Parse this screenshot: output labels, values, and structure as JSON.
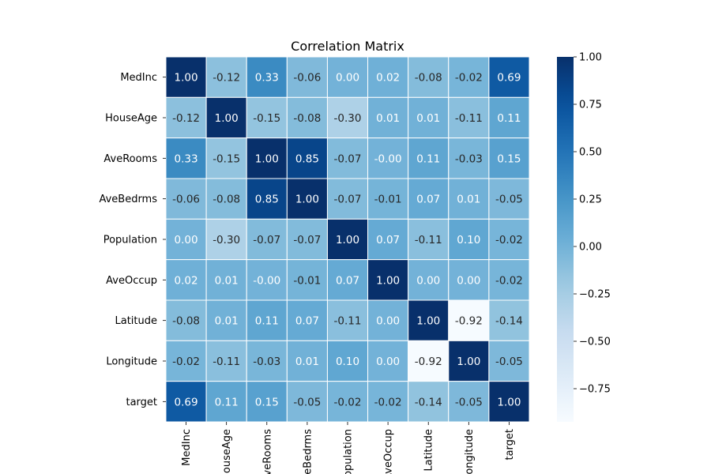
{
  "chart_data": {
    "type": "heatmap",
    "title": "Correlation Matrix",
    "colormap": "Blues",
    "gridlines": "white",
    "legend": "right",
    "row_labels": [
      "MedInc",
      "HouseAge",
      "AveRooms",
      "AveBedrms",
      "Population",
      "AveOccup",
      "Latitude",
      "Longitude",
      "target"
    ],
    "col_labels": [
      "MedInc",
      "HouseAge",
      "AveRooms",
      "AveBedrms",
      "Population",
      "AveOccup",
      "Latitude",
      "Longitude",
      "target"
    ],
    "values": [
      [
        1.0,
        -0.12,
        0.33,
        -0.06,
        0.0,
        0.02,
        -0.08,
        -0.02,
        0.69
      ],
      [
        -0.12,
        1.0,
        -0.15,
        -0.08,
        -0.3,
        0.01,
        0.01,
        -0.11,
        0.11
      ],
      [
        0.33,
        -0.15,
        1.0,
        0.85,
        -0.07,
        -0.0,
        0.11,
        -0.03,
        0.15
      ],
      [
        -0.06,
        -0.08,
        0.85,
        1.0,
        -0.07,
        -0.01,
        0.07,
        0.01,
        -0.05
      ],
      [
        0.0,
        -0.3,
        -0.07,
        -0.07,
        1.0,
        0.07,
        -0.11,
        0.1,
        -0.02
      ],
      [
        0.02,
        0.01,
        -0.0,
        -0.01,
        0.07,
        1.0,
        0.0,
        0.0,
        -0.02
      ],
      [
        -0.08,
        0.01,
        0.11,
        0.07,
        -0.11,
        0.0,
        1.0,
        -0.92,
        -0.14
      ],
      [
        -0.02,
        -0.11,
        -0.03,
        0.01,
        0.1,
        0.0,
        -0.92,
        1.0,
        -0.05
      ],
      [
        0.69,
        0.11,
        0.15,
        -0.05,
        -0.02,
        -0.02,
        -0.14,
        -0.05,
        1.0
      ]
    ],
    "annotations": [
      [
        "1.00",
        "-0.12",
        "0.33",
        "-0.06",
        "0.00",
        "0.02",
        "-0.08",
        "-0.02",
        "0.69"
      ],
      [
        "-0.12",
        "1.00",
        "-0.15",
        "-0.08",
        "-0.30",
        "0.01",
        "0.01",
        "-0.11",
        "0.11"
      ],
      [
        "0.33",
        "-0.15",
        "1.00",
        "0.85",
        "-0.07",
        "-0.00",
        "0.11",
        "-0.03",
        "0.15"
      ],
      [
        "-0.06",
        "-0.08",
        "0.85",
        "1.00",
        "-0.07",
        "-0.01",
        "0.07",
        "0.01",
        "-0.05"
      ],
      [
        "0.00",
        "-0.30",
        "-0.07",
        "-0.07",
        "1.00",
        "0.07",
        "-0.11",
        "0.10",
        "-0.02"
      ],
      [
        "0.02",
        "0.01",
        "-0.00",
        "-0.01",
        "0.07",
        "1.00",
        "0.00",
        "0.00",
        "-0.02"
      ],
      [
        "-0.08",
        "0.01",
        "0.11",
        "0.07",
        "-0.11",
        "0.00",
        "1.00",
        "-0.92",
        "-0.14"
      ],
      [
        "-0.02",
        "-0.11",
        "-0.03",
        "0.01",
        "0.10",
        "0.00",
        "-0.92",
        "1.00",
        "-0.05"
      ],
      [
        "0.69",
        "0.11",
        "0.15",
        "-0.05",
        "-0.02",
        "-0.02",
        "-0.14",
        "-0.05",
        "1.00"
      ]
    ],
    "colorbar": {
      "range": [
        -0.925,
        1.0
      ],
      "ticks": [
        1.0,
        0.75,
        0.5,
        0.25,
        0.0,
        -0.25,
        -0.5,
        -0.75
      ],
      "tick_labels": [
        "1.00",
        "0.75",
        "0.50",
        "0.25",
        "0.00",
        "−0.25",
        "−0.50",
        "−0.75"
      ]
    }
  }
}
